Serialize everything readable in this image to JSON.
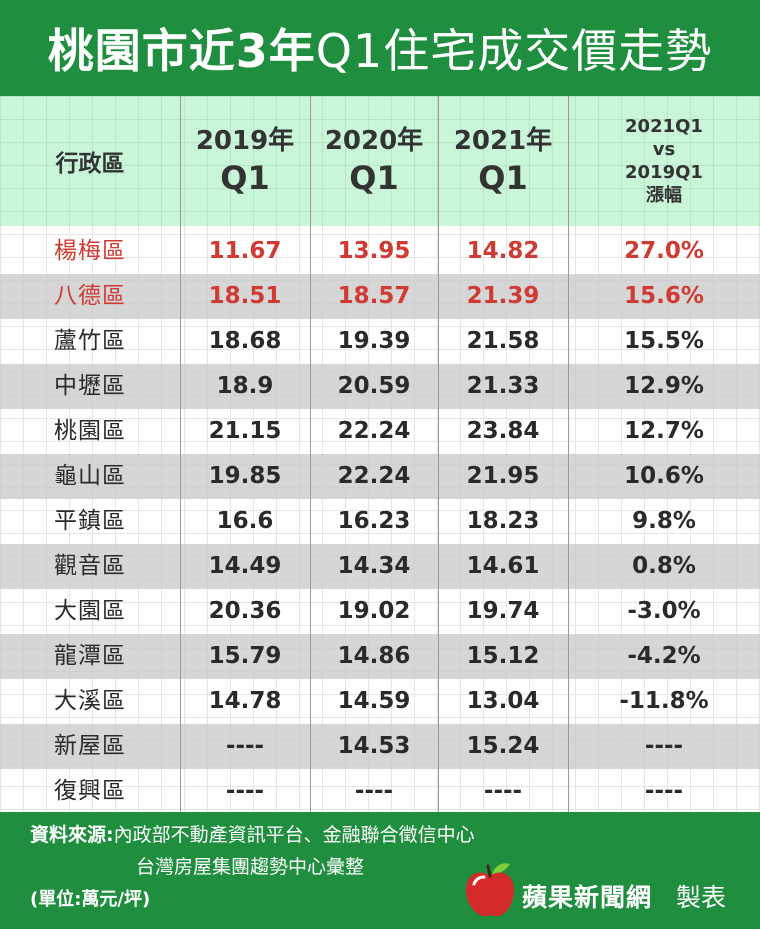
{
  "title": {
    "bold": "桃園市近3年",
    "light": "Q1住宅成交價走勢"
  },
  "headers": {
    "district": "行政區",
    "c1_year": "2019年",
    "c1_q": "Q1",
    "c2_year": "2020年",
    "c2_q": "Q1",
    "c3_year": "2021年",
    "c3_q": "Q1",
    "c4_l1": "2021Q1",
    "c4_l2": "vs",
    "c4_l3": "2019Q1",
    "c4_l4": "漲幅"
  },
  "rows": [
    {
      "name": "楊梅區",
      "v2019": "11.67",
      "v2020": "13.95",
      "v2021": "14.82",
      "change": "27.0%"
    },
    {
      "name": "八德區",
      "v2019": "18.51",
      "v2020": "18.57",
      "v2021": "21.39",
      "change": "15.6%"
    },
    {
      "name": "蘆竹區",
      "v2019": "18.68",
      "v2020": "19.39",
      "v2021": "21.58",
      "change": "15.5%"
    },
    {
      "name": "中壢區",
      "v2019": "18.9",
      "v2020": "20.59",
      "v2021": "21.33",
      "change": "12.9%"
    },
    {
      "name": "桃園區",
      "v2019": "21.15",
      "v2020": "22.24",
      "v2021": "23.84",
      "change": "12.7%"
    },
    {
      "name": "龜山區",
      "v2019": "19.85",
      "v2020": "22.24",
      "v2021": "21.95",
      "change": "10.6%"
    },
    {
      "name": "平鎮區",
      "v2019": "16.6",
      "v2020": "16.23",
      "v2021": "18.23",
      "change": "9.8%"
    },
    {
      "name": "觀音區",
      "v2019": "14.49",
      "v2020": "14.34",
      "v2021": "14.61",
      "change": "0.8%"
    },
    {
      "name": "大園區",
      "v2019": "20.36",
      "v2020": "19.02",
      "v2021": "19.74",
      "change": "-3.0%"
    },
    {
      "name": "龍潭區",
      "v2019": "15.79",
      "v2020": "14.86",
      "v2021": "15.12",
      "change": "-4.2%"
    },
    {
      "name": "大溪區",
      "v2019": "14.78",
      "v2020": "14.59",
      "v2021": "13.04",
      "change": "-11.8%"
    },
    {
      "name": "新屋區",
      "v2019": "----",
      "v2020": "14.53",
      "v2021": "15.24",
      "change": "----"
    },
    {
      "name": "復興區",
      "v2019": "----",
      "v2020": "----",
      "v2021": "----",
      "change": "----"
    }
  ],
  "highlight_color": "#cf3a32",
  "footer": {
    "source_label": "資料來源:",
    "source_line1": "內政部不動產資訊平台、金融聯合徵信中心",
    "source_line2": "台灣房屋集團趨勢中心彙整",
    "unit": "(單位:萬元/坪)",
    "brand": "蘋果新聞網",
    "maker": "製表",
    "logo_icon": "apple-logo-icon"
  }
}
